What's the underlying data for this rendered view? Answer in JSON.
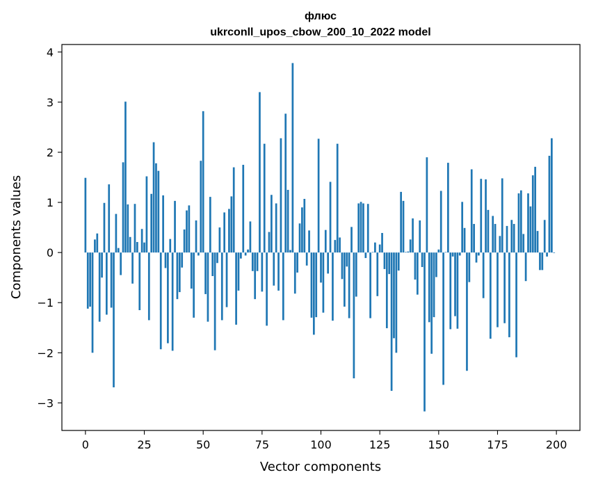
{
  "chart_data": {
    "type": "bar",
    "title": "флюс",
    "subtitle": "ukrconll_upos_cbow_200_10_2022 model",
    "xlabel": "Vector components",
    "ylabel": "Components values",
    "xlim": [
      -10,
      210
    ],
    "ylim": [
      -3.55,
      4.15
    ],
    "xticks": [
      0,
      25,
      50,
      75,
      100,
      125,
      150,
      175,
      200
    ],
    "yticks": [
      -3,
      -2,
      -1,
      0,
      1,
      2,
      3,
      4
    ],
    "xtick_labels": [
      "0",
      "25",
      "50",
      "75",
      "100",
      "125",
      "150",
      "175",
      "200"
    ],
    "ytick_labels": [
      "−3",
      "−2",
      "−1",
      "0",
      "1",
      "2",
      "3",
      "4"
    ],
    "bar_color": "#1f77b4",
    "grid": false,
    "x": [
      0,
      1,
      2,
      3,
      4,
      5,
      6,
      7,
      8,
      9,
      10,
      11,
      12,
      13,
      14,
      15,
      16,
      17,
      18,
      19,
      20,
      21,
      22,
      23,
      24,
      25,
      26,
      27,
      28,
      29,
      30,
      31,
      32,
      33,
      34,
      35,
      36,
      37,
      38,
      39,
      40,
      41,
      42,
      43,
      44,
      45,
      46,
      47,
      48,
      49,
      50,
      51,
      52,
      53,
      54,
      55,
      56,
      57,
      58,
      59,
      60,
      61,
      62,
      63,
      64,
      65,
      66,
      67,
      68,
      69,
      70,
      71,
      72,
      73,
      74,
      75,
      76,
      77,
      78,
      79,
      80,
      81,
      82,
      83,
      84,
      85,
      86,
      87,
      88,
      89,
      90,
      91,
      92,
      93,
      94,
      95,
      96,
      97,
      98,
      99,
      100,
      101,
      102,
      103,
      104,
      105,
      106,
      107,
      108,
      109,
      110,
      111,
      112,
      113,
      114,
      115,
      116,
      117,
      118,
      119,
      120,
      121,
      122,
      123,
      124,
      125,
      126,
      127,
      128,
      129,
      130,
      131,
      132,
      133,
      134,
      135,
      136,
      137,
      138,
      139,
      140,
      141,
      142,
      143,
      144,
      145,
      146,
      147,
      148,
      149,
      150,
      151,
      152,
      153,
      154,
      155,
      156,
      157,
      158,
      159,
      160,
      161,
      162,
      163,
      164,
      165,
      166,
      167,
      168,
      169,
      170,
      171,
      172,
      173,
      174,
      175,
      176,
      177,
      178,
      179,
      180,
      181,
      182,
      183,
      184,
      185,
      186,
      187,
      188,
      189,
      190,
      191,
      192,
      193,
      194,
      195,
      196,
      197,
      198,
      199
    ],
    "values": [
      1.49,
      -1.12,
      -1.08,
      -2.0,
      0.26,
      0.38,
      -1.38,
      -0.5,
      0.99,
      -1.24,
      1.36,
      -1.1,
      -2.69,
      0.77,
      0.09,
      -0.45,
      1.8,
      3.01,
      0.96,
      0.31,
      -0.62,
      0.97,
      0.21,
      -1.15,
      0.47,
      0.2,
      1.52,
      -1.35,
      1.17,
      2.2,
      1.78,
      1.63,
      -1.93,
      1.14,
      -0.31,
      -1.81,
      0.27,
      -1.96,
      1.03,
      -0.93,
      -0.79,
      -0.3,
      0.46,
      0.84,
      0.94,
      -0.72,
      -1.3,
      0.64,
      -0.06,
      1.83,
      2.82,
      -0.83,
      -1.38,
      1.11,
      -0.47,
      -1.95,
      -0.21,
      0.5,
      -1.35,
      0.8,
      -1.09,
      0.87,
      1.12,
      1.7,
      -1.44,
      -0.76,
      -0.12,
      1.75,
      -0.06,
      0.06,
      0.62,
      -0.37,
      -0.93,
      -0.37,
      3.2,
      -0.78,
      2.17,
      -1.46,
      0.41,
      1.15,
      -0.66,
      0.98,
      -0.76,
      2.28,
      -1.35,
      2.77,
      1.25,
      0.05,
      3.78,
      -0.82,
      -0.4,
      0.58,
      0.9,
      1.07,
      -0.26,
      0.44,
      -1.3,
      -1.64,
      -1.29,
      2.27,
      -0.6,
      -1.2,
      0.45,
      -0.42,
      1.41,
      -1.36,
      0.25,
      2.17,
      0.3,
      -0.53,
      -1.08,
      -0.28,
      -1.31,
      0.51,
      -2.51,
      -0.88,
      0.98,
      1.01,
      0.98,
      -0.11,
      0.97,
      -1.31,
      0.01,
      0.2,
      -0.87,
      0.16,
      0.39,
      -0.33,
      -1.51,
      -0.43,
      -2.76,
      -1.71,
      -2.0,
      -0.36,
      1.21,
      1.03,
      0.01,
      0.02,
      0.26,
      0.68,
      -0.54,
      -0.84,
      0.64,
      -0.29,
      -3.17,
      1.9,
      -1.39,
      -2.02,
      -1.29,
      -0.49,
      0.06,
      1.23,
      -2.64,
      0.01,
      1.79,
      -1.53,
      -0.08,
      -1.27,
      -1.52,
      -0.06,
      1.01,
      0.49,
      -2.36,
      -0.59,
      1.66,
      0.57,
      -0.2,
      -0.06,
      1.47,
      -0.91,
      1.46,
      0.85,
      -1.72,
      0.73,
      0.57,
      -1.49,
      0.33,
      1.48,
      -1.41,
      0.53,
      -1.69,
      0.65,
      0.57,
      -2.09,
      1.18,
      1.24,
      0.37,
      -0.57,
      1.18,
      0.92,
      1.54,
      1.71,
      0.43,
      -0.35,
      -0.35,
      0.65,
      -0.08,
      1.93,
      2.28,
      -0.01
    ]
  }
}
